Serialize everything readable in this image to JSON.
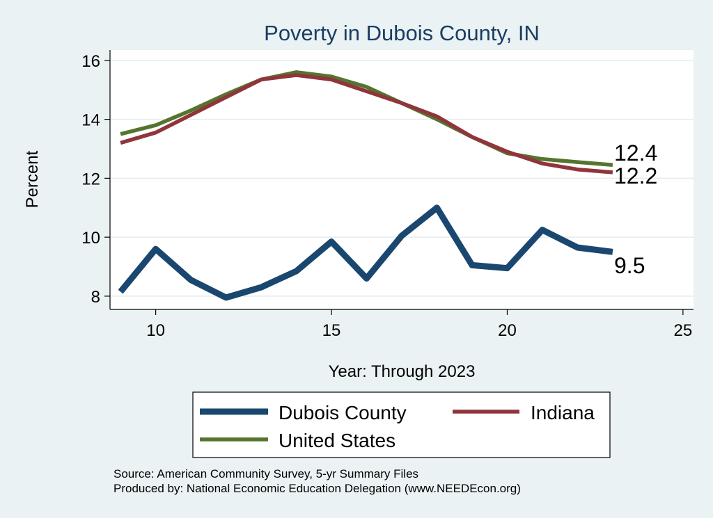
{
  "chart_data": {
    "type": "line",
    "title": "Poverty in Dubois County, IN",
    "xlabel": "Year: Through 2023",
    "ylabel": "Percent",
    "xlim": [
      8.7,
      25.3
    ],
    "ylim": [
      7.55,
      16.35
    ],
    "xticks": [
      10,
      15,
      20,
      25
    ],
    "yticks": [
      8,
      10,
      12,
      14,
      16
    ],
    "grid": true,
    "x": [
      9,
      10,
      11,
      12,
      13,
      14,
      15,
      16,
      17,
      18,
      19,
      20,
      21,
      22,
      23
    ],
    "series": [
      {
        "name": "Dubois County",
        "color": "#1a476f",
        "values": [
          8.15,
          9.6,
          8.55,
          7.95,
          8.3,
          8.85,
          9.85,
          8.6,
          10.05,
          11.0,
          9.05,
          8.95,
          10.25,
          9.65,
          9.5
        ],
        "end_label": "9.5"
      },
      {
        "name": "Indiana",
        "color": "#90353b",
        "values": [
          13.2,
          13.55,
          14.15,
          14.75,
          15.35,
          15.5,
          15.35,
          14.95,
          14.55,
          14.1,
          13.4,
          12.9,
          12.5,
          12.3,
          12.2
        ],
        "end_label": "12.2"
      },
      {
        "name": "United States",
        "color": "#55752f",
        "values": [
          13.5,
          13.8,
          14.3,
          14.85,
          15.35,
          15.6,
          15.45,
          15.1,
          14.55,
          14.0,
          13.4,
          12.85,
          12.65,
          12.55,
          12.45
        ],
        "end_label": "12.4"
      }
    ],
    "legend": [
      "Dubois County",
      "Indiana",
      "United States"
    ],
    "legend_position": "bottom"
  },
  "notes": {
    "source": "Source: American Community Survey, 5-yr Summary Files",
    "produced": "Produced by: National Economic Education Delegation (www.NEEDEcon.org)"
  }
}
